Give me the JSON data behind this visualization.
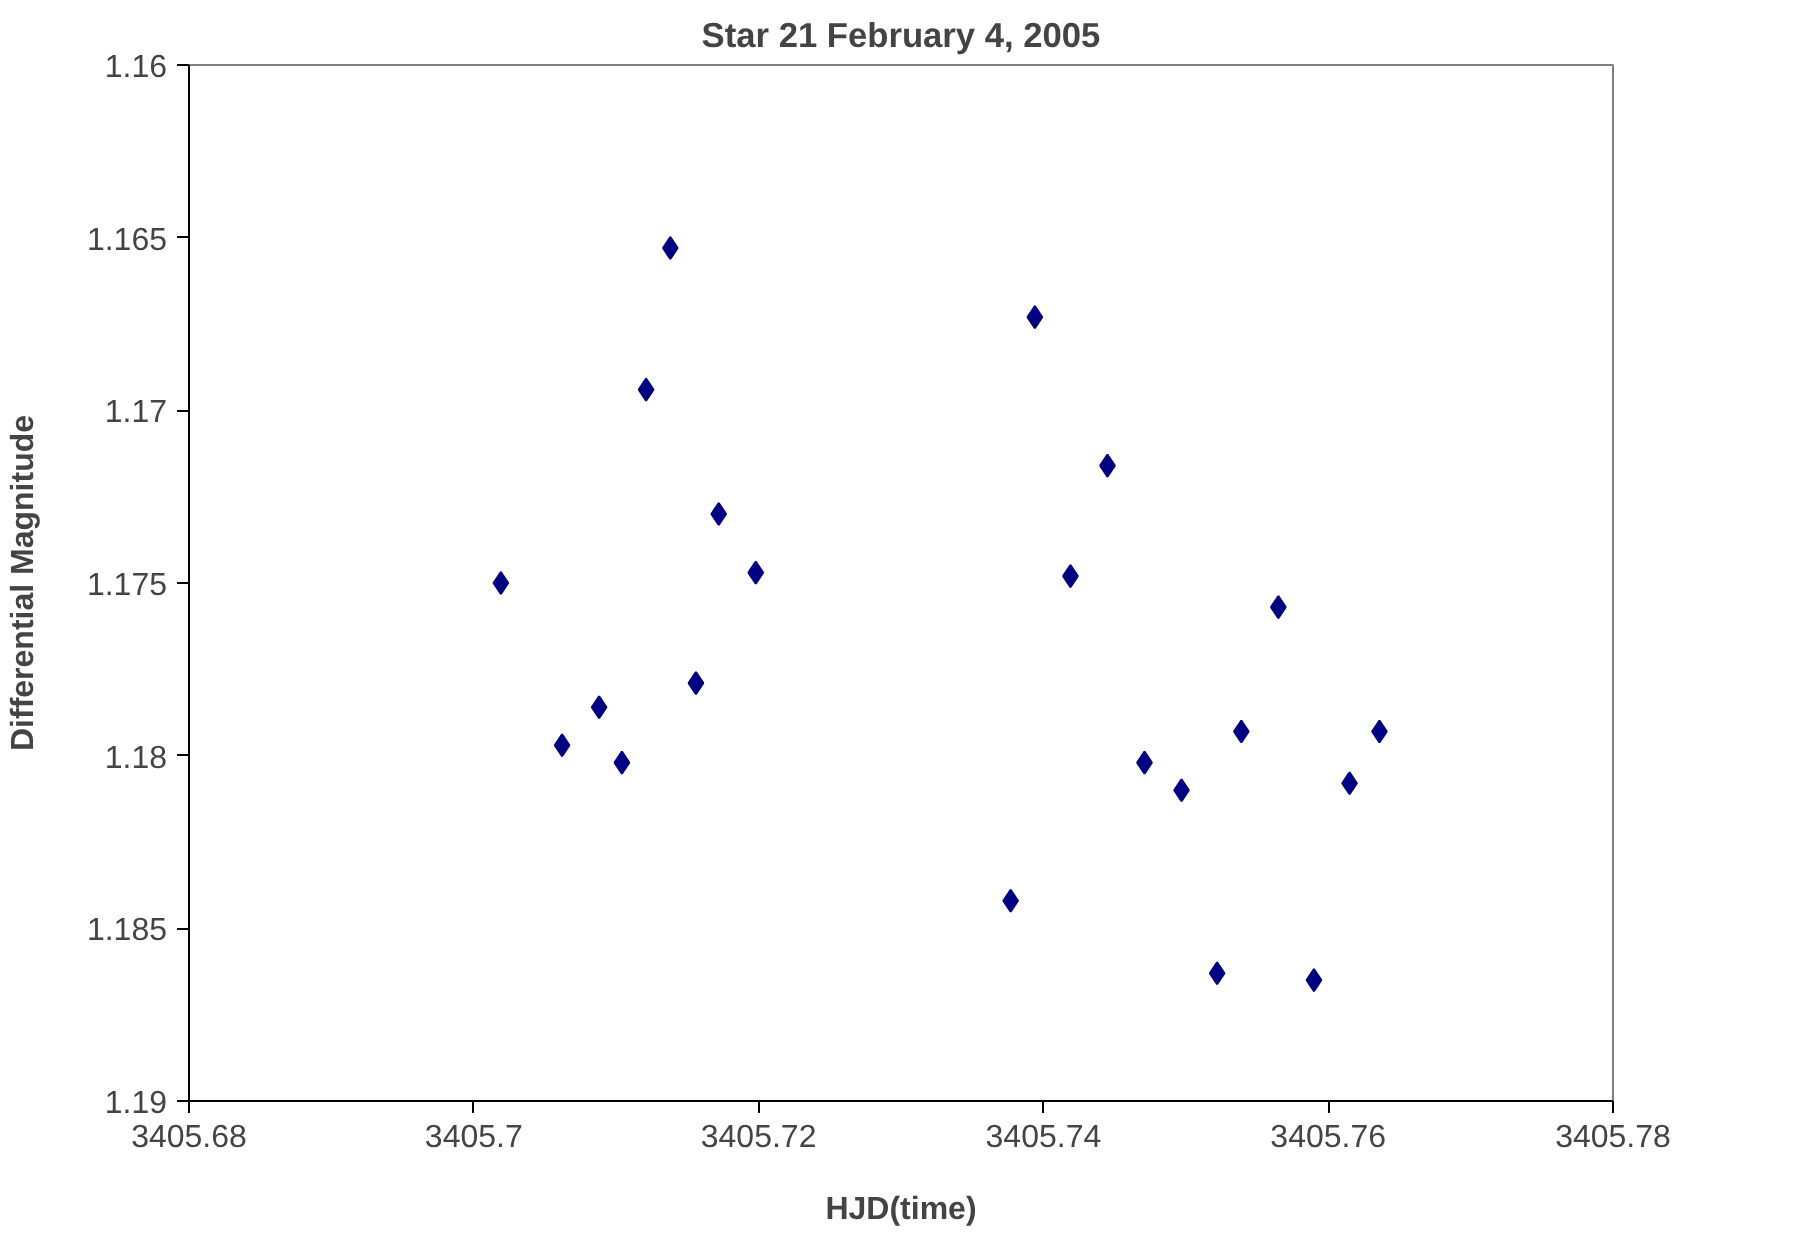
{
  "chart_data": {
    "type": "scatter",
    "title": "Star 21 February 4, 2005",
    "xlabel": "HJD(time)",
    "ylabel": "Differential Magnitude",
    "x": [
      3405.7019,
      3405.7062,
      3405.7088,
      3405.7104,
      3405.7121,
      3405.7138,
      3405.7156,
      3405.7172,
      3405.7198,
      3405.7377,
      3405.7394,
      3405.7419,
      3405.7445,
      3405.7471,
      3405.7497,
      3405.7522,
      3405.7539,
      3405.7565,
      3405.759,
      3405.7615,
      3405.7636
    ],
    "series": [
      {
        "color": "#000080",
        "values": [
          1.175,
          1.1797,
          1.1786,
          1.1802,
          1.1694,
          1.1653,
          1.1779,
          1.173,
          1.1747,
          1.1842,
          1.1673,
          1.1748,
          1.1716,
          1.1802,
          1.181,
          1.1863,
          1.1793,
          1.1757,
          1.1865,
          1.1808,
          1.1793
        ]
      }
    ],
    "xlim": [
      3405.68,
      3405.78
    ],
    "xticks": [
      3405.68,
      3405.7,
      3405.72,
      3405.74,
      3405.76,
      3405.78
    ],
    "ylim": [
      1.19,
      1.16
    ],
    "yticks": [
      1.16,
      1.165,
      1.17,
      1.175,
      1.18,
      1.185,
      1.19
    ],
    "marker": "diamond",
    "grid": false
  }
}
